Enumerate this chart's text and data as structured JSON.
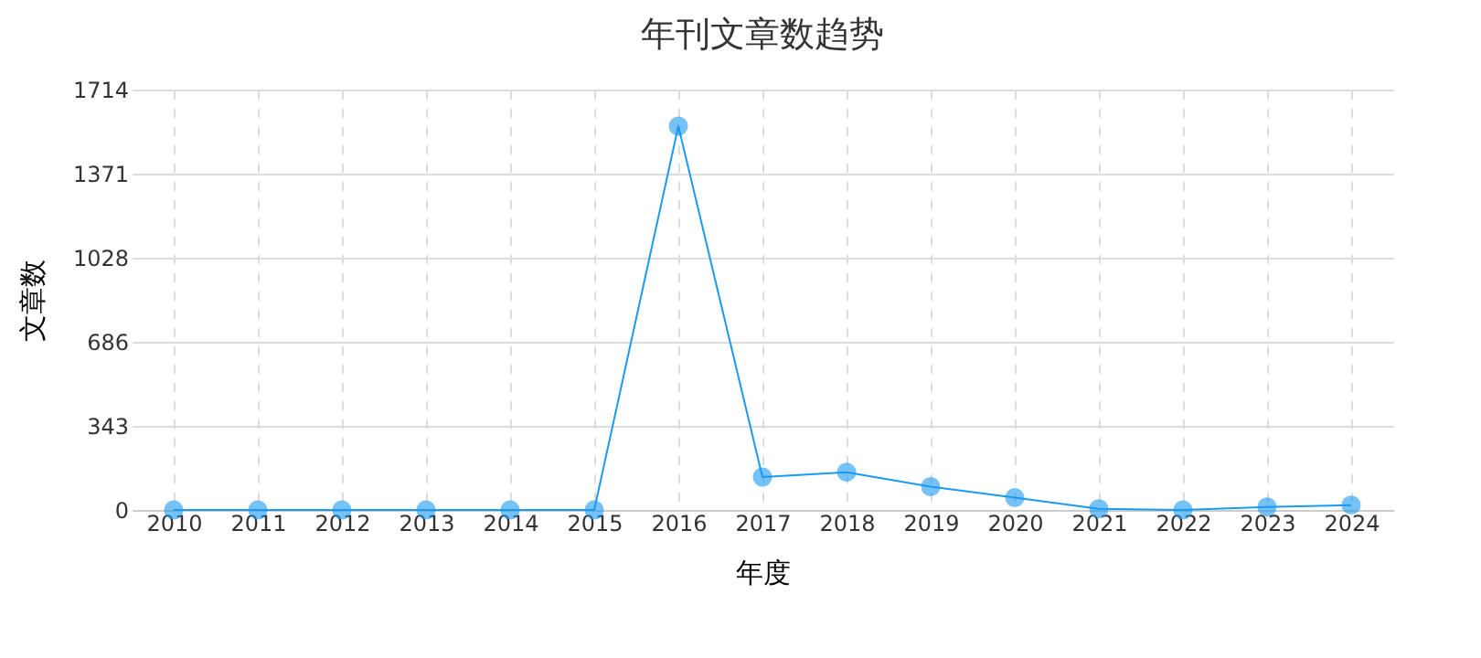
{
  "chart_data": {
    "type": "line",
    "title": "年刊文章数趋势",
    "xlabel": "年度",
    "ylabel": "文章数",
    "categories": [
      "2010",
      "2011",
      "2012",
      "2013",
      "2014",
      "2015",
      "2016",
      "2017",
      "2018",
      "2019",
      "2020",
      "2021",
      "2022",
      "2023",
      "2024"
    ],
    "series": [
      {
        "color": "#1a9af0",
        "values": [
          0,
          0,
          0,
          0,
          0,
          0,
          1565,
          134,
          154,
          95,
          50,
          5,
          0,
          12,
          20
        ]
      }
    ],
    "ylim": [
      0,
      1714
    ],
    "yticks": [
      0,
      343,
      686,
      1028,
      1371,
      1714
    ],
    "grid": true,
    "marker": "circle",
    "line_style": "solid"
  }
}
